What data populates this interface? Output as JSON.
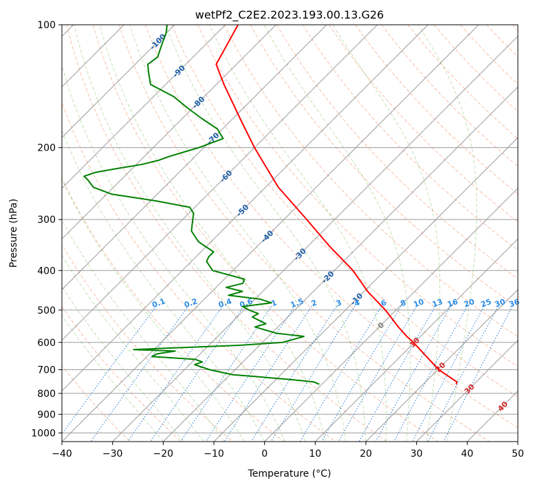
{
  "chart_data": {
    "type": "line",
    "chart_kind": "skew-t log-p diagram",
    "title": "wetPf2_C2E2.2023.193.00.13.G26",
    "xlabel": "Temperature (°C)",
    "ylabel": "Pressure (hPa)",
    "xlim": [
      -40,
      50
    ],
    "ylim": [
      1050,
      100
    ],
    "x_ticks": [
      -40,
      -30,
      -20,
      -10,
      0,
      10,
      20,
      30,
      40,
      50
    ],
    "x_tick_labels": [
      "−40",
      "−30",
      "−20",
      "−10",
      "0",
      "10",
      "20",
      "30",
      "40",
      "50"
    ],
    "y_ticks": [
      100,
      200,
      300,
      400,
      500,
      600,
      700,
      800,
      900,
      1000
    ],
    "y_tick_labels": [
      "100",
      "200",
      "300",
      "400",
      "500",
      "600",
      "700",
      "800",
      "900",
      "1000"
    ],
    "grid": true,
    "series": [
      {
        "name": "temperature",
        "color": "#ff0000",
        "pressure": [
          760,
          750,
          700,
          650,
          600,
          580,
          550,
          500,
          450,
          400,
          350,
          300,
          250,
          200,
          170,
          140,
          125,
          110,
          100
        ],
        "temperature": [
          26.5,
          26.2,
          20.2,
          15.2,
          9.8,
          7.3,
          3.8,
          -2.1,
          -9.3,
          -16.3,
          -25.5,
          -35.5,
          -47.5,
          -60.0,
          -68.5,
          -78.5,
          -84.0,
          -86.0,
          -87.5
        ]
      },
      {
        "name": "dewpoint",
        "color": "#008000",
        "pressure": [
          760,
          750,
          740,
          730,
          720,
          700,
          680,
          670,
          660,
          650,
          640,
          630,
          625,
          620,
          610,
          600,
          590,
          580,
          570,
          550,
          540,
          520,
          510,
          500,
          490,
          480,
          470,
          460,
          450,
          440,
          430,
          420,
          400,
          380,
          370,
          360,
          350,
          340,
          320,
          300,
          290,
          280,
          270,
          260,
          250,
          240,
          235,
          230,
          225,
          220,
          215,
          210,
          200,
          190,
          180,
          170,
          160,
          150,
          140,
          130,
          125,
          120,
          110,
          105,
          100
        ],
        "dewpoint": [
          -0.5,
          -2.0,
          -7.0,
          -13.0,
          -19.5,
          -25.0,
          -29.0,
          -28.0,
          -30.0,
          -39.0,
          -38.5,
          -35.5,
          -44.0,
          -38.0,
          -24.0,
          -16.0,
          -14.5,
          -13.0,
          -19.0,
          -24.5,
          -23.0,
          -27.0,
          -26.5,
          -29.0,
          -31.0,
          -26.0,
          -29.0,
          -36.0,
          -34.0,
          -38.0,
          -35.5,
          -36.0,
          -44.0,
          -47.0,
          -47.5,
          -47.5,
          -50.0,
          -52.5,
          -56.0,
          -58.0,
          -59.0,
          -61.0,
          -69.0,
          -79.0,
          -84.0,
          -86.5,
          -88.0,
          -86.5,
          -83.0,
          -79.0,
          -76.5,
          -75.0,
          -71.0,
          -68.0,
          -71.0,
          -76.0,
          -81.0,
          -86.0,
          -93.0,
          -96.0,
          -97.5,
          -97.0,
          -99.0,
          -100.0,
          -101.5
        ]
      }
    ],
    "isotherm_labels": [
      "-100",
      "-90",
      "-80",
      "-70",
      "-60",
      "-50",
      "-40",
      "-30",
      "-20",
      "-10",
      "0",
      "10",
      "20",
      "30",
      "40"
    ],
    "mixing_ratio_labels": [
      "0.1",
      "0.2",
      "0.4",
      "0.6",
      "1",
      "1.5",
      "2",
      "3",
      "4",
      "6",
      "8",
      "10",
      "13",
      "16",
      "20",
      "25",
      "30",
      "36"
    ]
  }
}
